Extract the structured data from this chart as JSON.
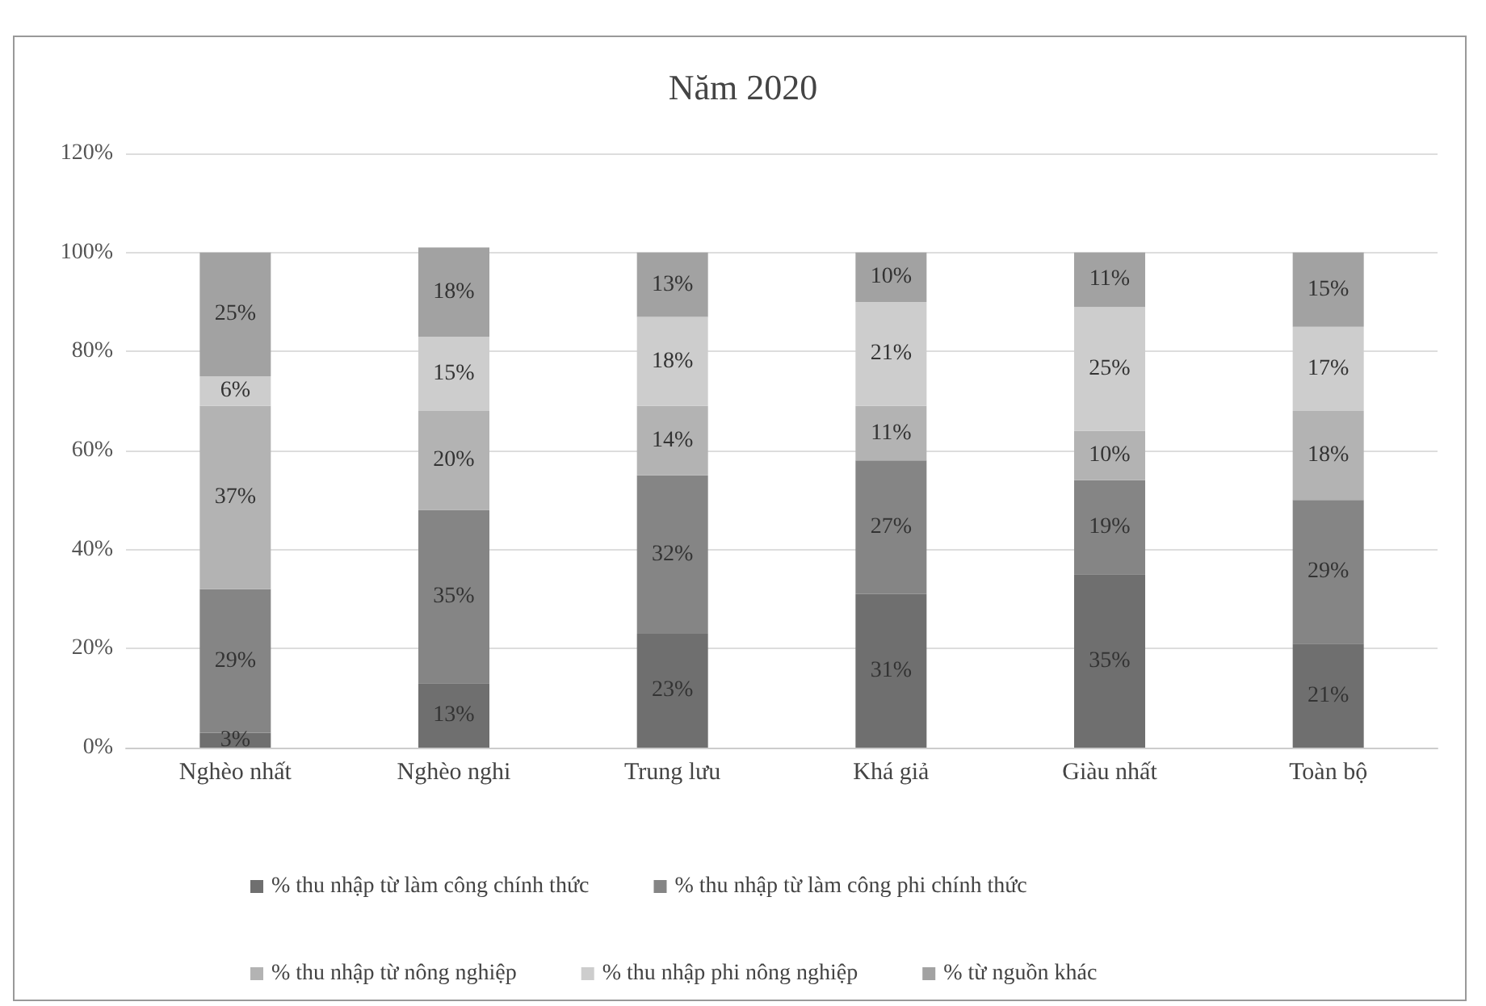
{
  "chart_data": {
    "type": "bar",
    "stacked": true,
    "title": "Năm 2020",
    "categories": [
      "Nghèo nhất",
      "Nghèo nghi",
      "Trung lưu",
      "Khá giả",
      "Giàu nhất",
      "Toàn bộ"
    ],
    "series": [
      {
        "name": "% thu nhập từ làm công chính thức",
        "color": "#6f6f6f",
        "values": [
          3,
          13,
          23,
          31,
          35,
          21
        ],
        "value_labels": [
          "3%",
          "13%",
          "23%",
          "31%",
          "35%",
          "21%"
        ]
      },
      {
        "name": "% thu nhập từ làm công phi chính thức",
        "color": "#858585",
        "values": [
          29,
          35,
          32,
          27,
          19,
          29
        ],
        "value_labels": [
          "29%",
          "35%",
          "32%",
          "27%",
          "19%",
          "29%"
        ]
      },
      {
        "name": "% thu nhập từ nông nghiệp",
        "color": "#b3b3b3",
        "values": [
          37,
          20,
          14,
          11,
          10,
          18
        ],
        "value_labels": [
          "37%",
          "20%",
          "14%",
          "11%",
          "10%",
          "18%"
        ]
      },
      {
        "name": "% thu nhập phi nông nghiệp",
        "color": "#cdcdcd",
        "values": [
          6,
          15,
          18,
          21,
          25,
          17
        ],
        "value_labels": [
          "6%",
          "15%",
          "18%",
          "21%",
          "25%",
          "17%"
        ]
      },
      {
        "name": "% từ nguồn khác",
        "color": "#a2a2a2",
        "values": [
          25,
          18,
          13,
          10,
          11,
          15
        ],
        "value_labels": [
          "25%",
          "18%",
          "13%",
          "10%",
          "11%",
          "15%"
        ]
      }
    ],
    "ylim": [
      0,
      120
    ],
    "yticks": [
      {
        "value": 0,
        "label": "0%"
      },
      {
        "value": 20,
        "label": "20%"
      },
      {
        "value": 40,
        "label": "40%"
      },
      {
        "value": 60,
        "label": "60%"
      },
      {
        "value": 80,
        "label": "80%"
      },
      {
        "value": 100,
        "label": "100%"
      },
      {
        "value": 120,
        "label": "120%"
      }
    ],
    "grid": "y",
    "legend": "bottom"
  }
}
